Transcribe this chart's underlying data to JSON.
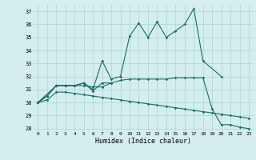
{
  "xlabel": "Humidex (Indice chaleur)",
  "bg_color": "#d4eeed",
  "grid_color": "#b2d8d4",
  "line_color": "#1a6b6b",
  "x_values": [
    0,
    1,
    2,
    3,
    4,
    5,
    6,
    7,
    8,
    9,
    10,
    11,
    12,
    13,
    14,
    15,
    16,
    17,
    18,
    19,
    20,
    21,
    22,
    23
  ],
  "ylim": [
    27.8,
    37.5
  ],
  "xlim": [
    -0.5,
    23.5
  ],
  "yticks": [
    28,
    29,
    30,
    31,
    32,
    33,
    34,
    35,
    36,
    37
  ],
  "xticks": [
    0,
    1,
    2,
    3,
    4,
    5,
    6,
    7,
    8,
    9,
    10,
    11,
    12,
    13,
    14,
    15,
    16,
    17,
    18,
    19,
    20,
    21,
    22,
    23
  ],
  "line1_x": [
    0,
    1,
    2,
    3,
    4,
    5,
    6,
    7,
    8,
    9,
    10,
    11,
    12,
    13,
    14,
    15,
    16,
    17,
    18,
    20
  ],
  "line1_y": [
    30.0,
    30.5,
    31.3,
    31.3,
    31.3,
    31.5,
    31.0,
    33.2,
    31.8,
    32.0,
    35.1,
    36.1,
    35.0,
    36.2,
    35.0,
    35.5,
    36.0,
    37.2,
    33.2,
    32.0
  ],
  "line2_x": [
    0,
    2,
    3,
    4,
    5,
    6,
    7,
    8
  ],
  "line2_y": [
    30.0,
    31.3,
    31.3,
    31.3,
    31.5,
    30.9,
    31.5,
    31.5
  ],
  "line3_x": [
    0,
    1,
    2,
    3,
    4,
    5,
    6,
    7,
    8,
    9,
    10,
    11,
    12,
    13,
    14,
    15,
    16,
    17,
    18,
    19,
    20,
    21,
    22,
    23
  ],
  "line3_y": [
    30.0,
    30.5,
    31.3,
    31.3,
    31.3,
    31.3,
    31.2,
    31.2,
    31.5,
    31.7,
    31.8,
    31.8,
    31.8,
    31.8,
    31.8,
    31.9,
    31.9,
    31.9,
    31.9,
    29.5,
    28.3,
    28.3,
    28.1,
    28.0
  ],
  "line4_x": [
    0,
    1,
    2,
    3,
    4,
    5,
    6,
    7,
    8,
    9,
    10,
    11,
    12,
    13,
    14,
    15,
    16,
    17,
    18,
    19,
    20,
    21,
    22,
    23
  ],
  "line4_y": [
    30.0,
    30.2,
    30.8,
    30.8,
    30.7,
    30.6,
    30.5,
    30.4,
    30.3,
    30.2,
    30.1,
    30.0,
    29.9,
    29.8,
    29.7,
    29.6,
    29.5,
    29.4,
    29.3,
    29.2,
    29.1,
    29.0,
    28.9,
    28.8
  ]
}
